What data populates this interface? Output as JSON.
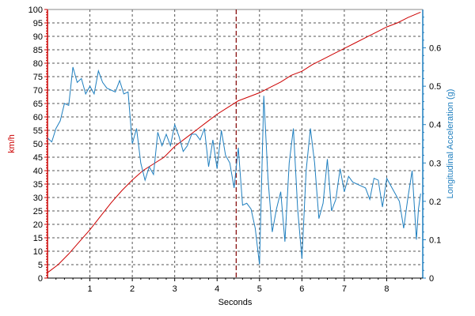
{
  "colors": {
    "speed": "#cc0000",
    "acceleration": "#1f7fbf",
    "marker": "#800000",
    "grid": "#555555",
    "axis": "#000000"
  },
  "chart_data": {
    "type": "line",
    "title": "",
    "xlabel": "Seconds",
    "ylabel_left": "km/h",
    "ylabel_right": "Longitudinal Acceleration (g)",
    "xlim": [
      0,
      8.85
    ],
    "ylim_left": [
      0,
      100
    ],
    "ylim_right": [
      0,
      0.7
    ],
    "x_ticks": [
      1,
      2,
      3,
      4,
      5,
      6,
      7,
      8
    ],
    "y_left_ticks": [
      0,
      5,
      10,
      15,
      20,
      25,
      30,
      35,
      40,
      45,
      50,
      55,
      60,
      65,
      70,
      75,
      80,
      85,
      90,
      95,
      100
    ],
    "y_right_ticks": [
      "0",
      "0.1",
      "0.2",
      "0.3",
      "0.4",
      "0.5",
      "0.6"
    ],
    "y_right_tick_values": [
      0,
      0.1,
      0.2,
      0.3,
      0.4,
      0.5,
      0.6
    ],
    "grid": true,
    "marker_line_x": 4.45,
    "series": [
      {
        "axis": "left",
        "x": [
          0,
          0.25,
          0.5,
          0.75,
          1.0,
          1.25,
          1.5,
          1.75,
          2.0,
          2.25,
          2.5,
          2.75,
          3.0,
          3.25,
          3.5,
          3.75,
          4.0,
          4.25,
          4.5,
          4.75,
          5.0,
          5.25,
          5.5,
          5.75,
          6.0,
          6.25,
          6.5,
          6.75,
          7.0,
          7.25,
          7.5,
          7.75,
          8.0,
          8.25,
          8.5,
          8.8
        ],
        "values": [
          2,
          5,
          9,
          13.5,
          18,
          23,
          28,
          32.5,
          36.5,
          40,
          42.5,
          45,
          49,
          52,
          55,
          58,
          61,
          63.5,
          66,
          67.5,
          69,
          71,
          73,
          75.5,
          77,
          79.5,
          81.5,
          83.5,
          85.5,
          87.5,
          89.5,
          91.5,
          93.5,
          95,
          97,
          99
        ]
      },
      {
        "axis": "right",
        "x": [
          0,
          0.1,
          0.2,
          0.3,
          0.4,
          0.5,
          0.6,
          0.7,
          0.8,
          0.9,
          1.0,
          1.1,
          1.2,
          1.3,
          1.4,
          1.5,
          1.6,
          1.7,
          1.8,
          1.9,
          2.0,
          2.1,
          2.2,
          2.3,
          2.4,
          2.5,
          2.6,
          2.7,
          2.8,
          2.9,
          3.0,
          3.1,
          3.2,
          3.3,
          3.4,
          3.5,
          3.6,
          3.7,
          3.8,
          3.9,
          4.0,
          4.1,
          4.2,
          4.3,
          4.4,
          4.5,
          4.6,
          4.7,
          4.8,
          4.9,
          5.0,
          5.1,
          5.2,
          5.3,
          5.4,
          5.5,
          5.6,
          5.7,
          5.8,
          5.9,
          6.0,
          6.1,
          6.2,
          6.3,
          6.4,
          6.5,
          6.6,
          6.7,
          6.8,
          6.9,
          7.0,
          7.1,
          7.2,
          7.3,
          7.4,
          7.5,
          7.6,
          7.7,
          7.8,
          7.9,
          8.0,
          8.1,
          8.2,
          8.3,
          8.4,
          8.5,
          8.6,
          8.7,
          8.75,
          8.8
        ],
        "values": [
          0.365,
          0.355,
          0.39,
          0.41,
          0.455,
          0.45,
          0.55,
          0.51,
          0.52,
          0.48,
          0.5,
          0.48,
          0.54,
          0.51,
          0.495,
          0.49,
          0.485,
          0.515,
          0.48,
          0.485,
          0.35,
          0.39,
          0.3,
          0.255,
          0.29,
          0.27,
          0.38,
          0.345,
          0.375,
          0.345,
          0.4,
          0.37,
          0.33,
          0.345,
          0.375,
          0.375,
          0.36,
          0.39,
          0.29,
          0.36,
          0.285,
          0.385,
          0.32,
          0.3,
          0.235,
          0.34,
          0.19,
          0.195,
          0.18,
          0.13,
          0.035,
          0.475,
          0.26,
          0.12,
          0.18,
          0.225,
          0.095,
          0.3,
          0.39,
          0.18,
          0.05,
          0.28,
          0.39,
          0.3,
          0.155,
          0.195,
          0.31,
          0.175,
          0.205,
          0.285,
          0.225,
          0.265,
          0.25,
          0.245,
          0.24,
          0.235,
          0.205,
          0.26,
          0.255,
          0.185,
          0.26,
          0.24,
          0.22,
          0.2,
          0.13,
          0.21,
          0.28,
          0.1,
          0.18,
          0.22
        ]
      }
    ]
  }
}
